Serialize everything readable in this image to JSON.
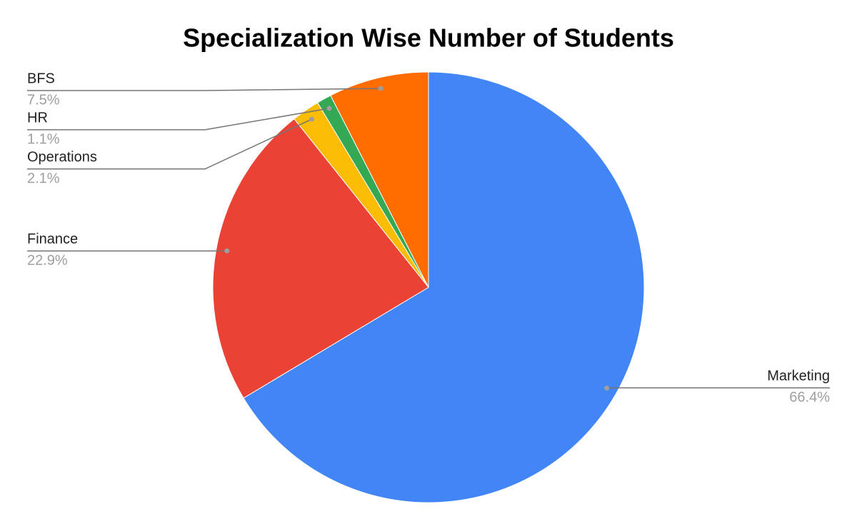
{
  "chart_data": {
    "type": "pie",
    "title": "Specialization Wise Number of Students",
    "categories": [
      "Marketing",
      "Finance",
      "Operations",
      "HR",
      "BFS"
    ],
    "values": [
      66.4,
      22.9,
      2.1,
      1.1,
      7.5
    ],
    "value_labels": [
      "66.4%",
      "22.9%",
      "2.1%",
      "1.1%",
      "7.5%"
    ],
    "colors": [
      "#4285f4",
      "#ea4335",
      "#fbbc04",
      "#34a853",
      "#ff6d01"
    ]
  }
}
